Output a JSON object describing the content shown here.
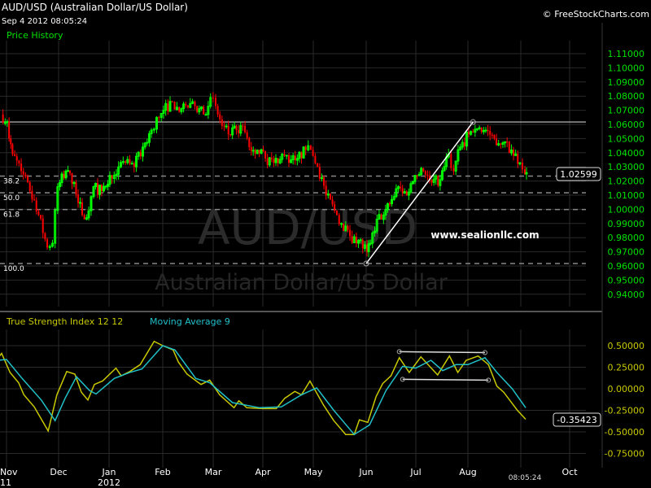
{
  "header": {
    "title": "AUD/USD (Australian Dollar/US Dollar)",
    "timestamp": "Sep 4 2012 08:05:24",
    "copyright": "© FreeStockCharts.com"
  },
  "colors": {
    "background": "#000000",
    "up_candle": "#00ff00",
    "down_candle": "#ff0000",
    "axis_text": "#00e000",
    "tsi_line": "#c8c800",
    "ma_line": "#20c0c8",
    "grid": "#2a2a2a"
  },
  "price_panel": {
    "label": "Price History",
    "watermark_symbol": "AUD/USD",
    "watermark_name": "Australian Dollar/US Dollar",
    "annotation_text": "www.sealionllc.com",
    "last_price_label": "1.02599",
    "fib_labels": [
      "38.2",
      "50.0",
      "61.8",
      "100.0"
    ]
  },
  "indicator_panel": {
    "tsi_label": "True Strength Index 12 12",
    "ma_label": "Moving Average 9",
    "last_value_label": "-0.35423"
  },
  "time_axis": {
    "month_labels": [
      "Nov",
      "Dec",
      "Jan",
      "Feb",
      "Mar",
      "Apr",
      "May",
      "Jun",
      "Jul",
      "Aug",
      "Oct"
    ],
    "year_labels": [
      "11",
      "2012"
    ],
    "current_time": "08:05:24"
  },
  "chart_data": [
    {
      "type": "candlestick",
      "title": "AUD/USD (Australian Dollar/US Dollar)",
      "ylim": [
        0.935,
        1.115
      ],
      "y_ticks": [
        "1.11000",
        "1.10000",
        "1.09000",
        "1.08000",
        "1.07000",
        "1.06000",
        "1.05000",
        "1.04000",
        "1.03000",
        "1.02000",
        "1.01000",
        "1.00000",
        "0.99000",
        "0.98000",
        "0.97000",
        "0.96000",
        "0.95000",
        "0.94000"
      ],
      "x_range": [
        "2011-10-27",
        "2012-10-10"
      ],
      "grid": true,
      "close_path": [
        [
          "2011-10-28",
          1.067
        ],
        [
          "2011-11-01",
          1.062
        ],
        [
          "2011-11-02",
          1.05
        ],
        [
          "2011-11-04",
          1.039
        ],
        [
          "2011-11-09",
          1.027
        ],
        [
          "2011-11-14",
          1.013
        ],
        [
          "2011-11-19",
          0.996
        ],
        [
          "2011-11-24",
          0.973
        ],
        [
          "2011-11-27",
          0.976
        ],
        [
          "2011-11-30",
          1.016
        ],
        [
          "2011-12-05",
          1.027
        ],
        [
          "2011-12-10",
          1.019
        ],
        [
          "2011-12-15",
          0.996
        ],
        [
          "2011-12-19",
          0.999
        ],
        [
          "2011-12-22",
          1.016
        ],
        [
          "2011-12-27",
          1.013
        ],
        [
          "2012-01-01",
          1.024
        ],
        [
          "2012-01-06",
          1.03
        ],
        [
          "2012-01-10",
          1.033
        ],
        [
          "2012-01-15",
          1.03
        ],
        [
          "2012-01-20",
          1.044
        ],
        [
          "2012-01-25",
          1.056
        ],
        [
          "2012-01-28",
          1.065
        ],
        [
          "2012-02-01",
          1.07
        ],
        [
          "2012-02-06",
          1.076
        ],
        [
          "2012-02-10",
          1.069
        ],
        [
          "2012-02-15",
          1.072
        ],
        [
          "2012-02-19",
          1.073
        ],
        [
          "2012-02-24",
          1.067
        ],
        [
          "2012-02-28",
          1.079
        ],
        [
          "2012-03-02",
          1.073
        ],
        [
          "2012-03-06",
          1.059
        ],
        [
          "2012-03-10",
          1.053
        ],
        [
          "2012-03-15",
          1.056
        ],
        [
          "2012-03-19",
          1.059
        ],
        [
          "2012-03-23",
          1.044
        ],
        [
          "2012-03-28",
          1.042
        ],
        [
          "2012-04-02",
          1.036
        ],
        [
          "2012-04-07",
          1.033
        ],
        [
          "2012-04-12",
          1.039
        ],
        [
          "2012-04-16",
          1.033
        ],
        [
          "2012-04-21",
          1.036
        ],
        [
          "2012-04-26",
          1.042
        ],
        [
          "2012-04-29",
          1.042
        ],
        [
          "2012-05-03",
          1.03
        ],
        [
          "2012-05-08",
          1.01
        ],
        [
          "2012-05-13",
          0.999
        ],
        [
          "2012-05-17",
          0.99
        ],
        [
          "2012-05-22",
          0.981
        ],
        [
          "2012-05-27",
          0.978
        ],
        [
          "2012-06-01",
          0.97
        ],
        [
          "2012-06-03",
          0.976
        ],
        [
          "2012-06-07",
          0.993
        ],
        [
          "2012-06-11",
          0.996
        ],
        [
          "2012-06-16",
          1.007
        ],
        [
          "2012-06-20",
          1.016
        ],
        [
          "2012-06-25",
          1.01
        ],
        [
          "2012-06-30",
          1.024
        ],
        [
          "2012-07-05",
          1.027
        ],
        [
          "2012-07-10",
          1.019
        ],
        [
          "2012-07-15",
          1.021
        ],
        [
          "2012-07-20",
          1.039
        ],
        [
          "2012-07-23",
          1.027
        ],
        [
          "2012-07-27",
          1.044
        ],
        [
          "2012-08-01",
          1.053
        ],
        [
          "2012-08-06",
          1.057
        ],
        [
          "2012-08-11",
          1.056
        ],
        [
          "2012-08-16",
          1.05
        ],
        [
          "2012-08-21",
          1.047
        ],
        [
          "2012-08-26",
          1.042
        ],
        [
          "2012-08-31",
          1.033
        ],
        [
          "2012-09-03",
          1.025
        ],
        [
          "2012-09-04",
          1.02599
        ]
      ],
      "last_price": 1.02599,
      "horizontal_level": 1.0617,
      "fibonacci": {
        "high": 1.0617,
        "low": 0.9617,
        "levels": [
          38.2,
          50.0,
          61.8,
          100.0
        ]
      },
      "trendline": [
        [
          "2012-06-01",
          0.9617
        ],
        [
          "2012-08-04",
          1.0617
        ]
      ]
    },
    {
      "type": "line",
      "ylim": [
        -0.85,
        0.65
      ],
      "y_ticks": [
        "0.50000",
        "0.25000",
        "0.00000",
        "-0.25000",
        "-0.50000",
        "-0.75000"
      ],
      "series": [
        {
          "name": "True Strength Index 12 12",
          "points": [
            [
              "2011-10-27",
              0.36
            ],
            [
              "2011-10-29",
              0.41
            ],
            [
              "2011-11-03",
              0.19
            ],
            [
              "2011-11-08",
              0.07
            ],
            [
              "2011-11-11",
              -0.07
            ],
            [
              "2011-11-17",
              -0.21
            ],
            [
              "2011-11-25",
              -0.49
            ],
            [
              "2011-11-30",
              -0.07
            ],
            [
              "2011-12-06",
              0.2
            ],
            [
              "2011-12-11",
              0.17
            ],
            [
              "2011-12-15",
              -0.04
            ],
            [
              "2011-12-19",
              -0.13
            ],
            [
              "2011-12-23",
              0.05
            ],
            [
              "2011-12-28",
              0.09
            ],
            [
              "2012-01-05",
              0.24
            ],
            [
              "2012-01-08",
              0.15
            ],
            [
              "2012-01-13",
              0.2
            ],
            [
              "2012-01-19",
              0.28
            ],
            [
              "2012-01-27",
              0.55
            ],
            [
              "2012-02-01",
              0.5
            ],
            [
              "2012-02-07",
              0.45
            ],
            [
              "2012-02-10",
              0.31
            ],
            [
              "2012-02-15",
              0.17
            ],
            [
              "2012-02-23",
              0.05
            ],
            [
              "2012-02-28",
              0.1
            ],
            [
              "2012-03-05",
              -0.07
            ],
            [
              "2012-03-14",
              -0.22
            ],
            [
              "2012-03-17",
              -0.14
            ],
            [
              "2012-03-22",
              -0.22
            ],
            [
              "2012-04-01",
              -0.23
            ],
            [
              "2012-04-09",
              -0.23
            ],
            [
              "2012-04-14",
              -0.11
            ],
            [
              "2012-04-20",
              -0.03
            ],
            [
              "2012-04-24",
              -0.07
            ],
            [
              "2012-04-29",
              0.09
            ],
            [
              "2012-05-07",
              -0.19
            ],
            [
              "2012-05-13",
              -0.37
            ],
            [
              "2012-05-20",
              -0.53
            ],
            [
              "2012-05-25",
              -0.53
            ],
            [
              "2012-05-28",
              -0.36
            ],
            [
              "2012-06-02",
              -0.39
            ],
            [
              "2012-06-07",
              -0.09
            ],
            [
              "2012-06-11",
              0.06
            ],
            [
              "2012-06-16",
              0.15
            ],
            [
              "2012-06-21",
              0.36
            ],
            [
              "2012-06-27",
              0.19
            ],
            [
              "2012-07-04",
              0.37
            ],
            [
              "2012-07-14",
              0.16
            ],
            [
              "2012-07-21",
              0.38
            ],
            [
              "2012-07-26",
              0.19
            ],
            [
              "2012-07-31",
              0.33
            ],
            [
              "2012-08-07",
              0.38
            ],
            [
              "2012-08-13",
              0.28
            ],
            [
              "2012-08-18",
              0.03
            ],
            [
              "2012-08-22",
              -0.04
            ],
            [
              "2012-08-30",
              -0.25
            ],
            [
              "2012-09-04",
              -0.35423
            ]
          ]
        },
        {
          "name": "Moving Average 9",
          "points": [
            [
              "2011-10-27",
              0.33
            ],
            [
              "2011-11-01",
              0.34
            ],
            [
              "2011-11-10",
              0.12
            ],
            [
              "2011-11-21",
              -0.13
            ],
            [
              "2011-11-29",
              -0.37
            ],
            [
              "2011-12-05",
              -0.11
            ],
            [
              "2011-12-12",
              0.14
            ],
            [
              "2011-12-20",
              -0.02
            ],
            [
              "2011-12-24",
              -0.06
            ],
            [
              "2012-01-04",
              0.12
            ],
            [
              "2012-01-13",
              0.19
            ],
            [
              "2012-01-20",
              0.23
            ],
            [
              "2012-02-01",
              0.5
            ],
            [
              "2012-02-08",
              0.45
            ],
            [
              "2012-02-20",
              0.12
            ],
            [
              "2012-02-28",
              0.07
            ],
            [
              "2012-03-13",
              -0.16
            ],
            [
              "2012-03-30",
              -0.22
            ],
            [
              "2012-04-12",
              -0.21
            ],
            [
              "2012-04-24",
              -0.07
            ],
            [
              "2012-05-03",
              0.01
            ],
            [
              "2012-05-13",
              -0.25
            ],
            [
              "2012-05-25",
              -0.53
            ],
            [
              "2012-06-03",
              -0.42
            ],
            [
              "2012-06-13",
              -0.02
            ],
            [
              "2012-06-23",
              0.26
            ],
            [
              "2012-07-01",
              0.24
            ],
            [
              "2012-07-10",
              0.33
            ],
            [
              "2012-07-17",
              0.21
            ],
            [
              "2012-07-25",
              0.28
            ],
            [
              "2012-08-01",
              0.28
            ],
            [
              "2012-08-11",
              0.36
            ],
            [
              "2012-08-18",
              0.19
            ],
            [
              "2012-08-27",
              0.0
            ],
            [
              "2012-09-04",
              -0.22
            ]
          ]
        }
      ],
      "annotation_lines": [
        [
          [
            "2012-06-21",
            0.43
          ],
          [
            "2012-08-11",
            0.42
          ]
        ],
        [
          [
            "2012-06-23",
            0.11
          ],
          [
            "2012-08-13",
            0.1
          ]
        ]
      ]
    }
  ]
}
